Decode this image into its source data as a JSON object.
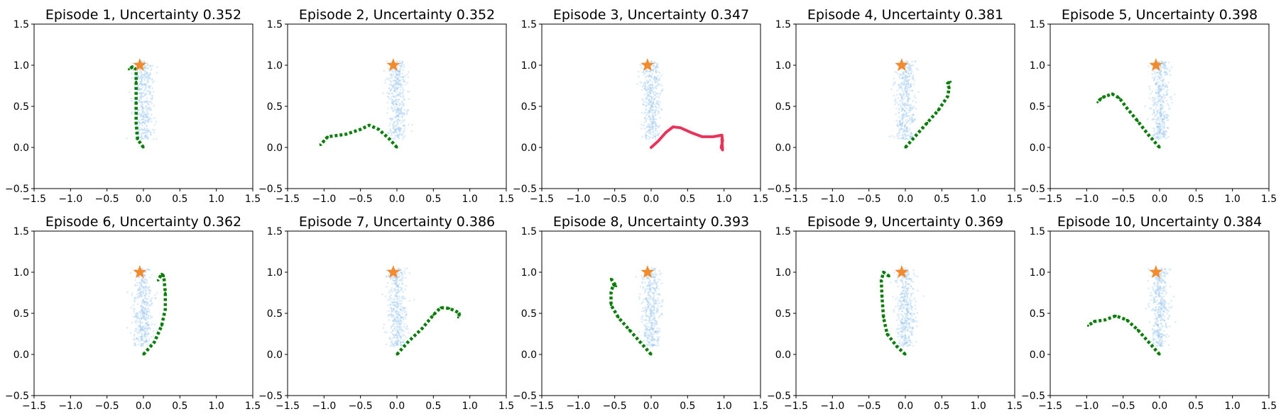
{
  "colors": {
    "cloud": "#9ec8ee",
    "target": "#f28a2e",
    "trajectory": "#0b7d0b",
    "highlight": "#e8335a"
  },
  "chart_data": [
    {
      "type": "scatter",
      "title": "Episode 1, Uncertainty 0.352",
      "xlim": [
        -1.5,
        1.5
      ],
      "ylim": [
        -0.5,
        1.5
      ],
      "xticks": [
        "−1.5",
        "−1.0",
        "−0.5",
        "0.0",
        "0.5",
        "1.0",
        "1.5"
      ],
      "yticks": [
        "−0.5",
        "0.0",
        "0.5",
        "1.0",
        "1.5"
      ],
      "cloud": {
        "center_x": 0.0,
        "top_y": 1.0,
        "bottom_y": 0.15,
        "half_width": 0.12,
        "points": 420
      },
      "target": [
        -0.05,
        1.0
      ],
      "trajectory": {
        "style": "dotted",
        "color": "trajectory",
        "points": [
          [
            0.0,
            0.0
          ],
          [
            -0.08,
            0.1
          ],
          [
            -0.1,
            0.3
          ],
          [
            -0.1,
            0.55
          ],
          [
            -0.1,
            0.8
          ],
          [
            -0.1,
            0.95
          ],
          [
            -0.15,
            0.98
          ],
          [
            -0.2,
            0.95
          ]
        ]
      }
    },
    {
      "type": "scatter",
      "title": "Episode 2, Uncertainty 0.352",
      "xlim": [
        -1.5,
        1.5
      ],
      "ylim": [
        -0.5,
        1.5
      ],
      "xticks": [
        "−1.5",
        "−1.0",
        "−0.5",
        "0.0",
        "0.5",
        "1.0",
        "1.5"
      ],
      "yticks": [
        "−0.5",
        "0.0",
        "0.5",
        "1.0",
        "1.5"
      ],
      "cloud": {
        "center_x": 0.0,
        "top_y": 1.0,
        "bottom_y": 0.15,
        "half_width": 0.12,
        "points": 420
      },
      "target": [
        -0.05,
        1.0
      ],
      "trajectory": {
        "style": "dotted",
        "color": "trajectory",
        "points": [
          [
            0.0,
            0.0
          ],
          [
            -0.1,
            0.1
          ],
          [
            -0.25,
            0.22
          ],
          [
            -0.38,
            0.27
          ],
          [
            -0.5,
            0.22
          ],
          [
            -0.7,
            0.16
          ],
          [
            -0.95,
            0.13
          ],
          [
            -1.0,
            0.08
          ],
          [
            -1.05,
            0.03
          ]
        ]
      }
    },
    {
      "type": "scatter",
      "title": "Episode 3, Uncertainty 0.347",
      "xlim": [
        -1.5,
        1.5
      ],
      "ylim": [
        -0.5,
        1.5
      ],
      "xticks": [
        "−1.5",
        "−1.0",
        "−0.5",
        "0.0",
        "0.5",
        "1.0",
        "1.5"
      ],
      "yticks": [
        "−0.5",
        "0.0",
        "0.5",
        "1.0",
        "1.5"
      ],
      "cloud": {
        "center_x": 0.0,
        "top_y": 1.0,
        "bottom_y": 0.15,
        "half_width": 0.12,
        "points": 420
      },
      "target": [
        -0.05,
        1.0
      ],
      "trajectory": {
        "style": "solid",
        "color": "highlight",
        "points": [
          [
            0.0,
            0.0
          ],
          [
            0.1,
            0.08
          ],
          [
            0.2,
            0.18
          ],
          [
            0.3,
            0.25
          ],
          [
            0.4,
            0.24
          ],
          [
            0.55,
            0.18
          ],
          [
            0.7,
            0.13
          ],
          [
            0.85,
            0.13
          ],
          [
            0.97,
            0.15
          ],
          [
            0.98,
            0.08
          ],
          [
            0.96,
            0.0
          ],
          [
            0.98,
            -0.03
          ],
          [
            0.97,
            0.1
          ]
        ]
      }
    },
    {
      "type": "scatter",
      "title": "Episode 4, Uncertainty 0.381",
      "xlim": [
        -1.5,
        1.5
      ],
      "ylim": [
        -0.5,
        1.5
      ],
      "xticks": [
        "−1.5",
        "−1.0",
        "−0.5",
        "0.0",
        "0.5",
        "1.0",
        "1.5"
      ],
      "yticks": [
        "−0.5",
        "0.0",
        "0.5",
        "1.0",
        "1.5"
      ],
      "cloud": {
        "center_x": 0.0,
        "top_y": 1.0,
        "bottom_y": 0.15,
        "half_width": 0.12,
        "points": 420
      },
      "target": [
        -0.05,
        1.0
      ],
      "trajectory": {
        "style": "dotted",
        "color": "trajectory",
        "points": [
          [
            0.0,
            0.0
          ],
          [
            0.15,
            0.15
          ],
          [
            0.3,
            0.3
          ],
          [
            0.45,
            0.45
          ],
          [
            0.58,
            0.62
          ],
          [
            0.6,
            0.72
          ],
          [
            0.58,
            0.78
          ],
          [
            0.62,
            0.8
          ]
        ]
      }
    },
    {
      "type": "scatter",
      "title": "Episode 5, Uncertainty 0.398",
      "xlim": [
        -1.5,
        1.5
      ],
      "ylim": [
        -0.5,
        1.5
      ],
      "xticks": [
        "−1.5",
        "−1.0",
        "−0.5",
        "0.0",
        "0.5",
        "1.0",
        "1.5"
      ],
      "yticks": [
        "−0.5",
        "0.0",
        "0.5",
        "1.0",
        "1.5"
      ],
      "cloud": {
        "center_x": 0.0,
        "top_y": 1.0,
        "bottom_y": 0.15,
        "half_width": 0.12,
        "points": 420
      },
      "target": [
        -0.05,
        1.0
      ],
      "trajectory": {
        "style": "dotted",
        "color": "trajectory",
        "points": [
          [
            0.0,
            0.0
          ],
          [
            -0.15,
            0.15
          ],
          [
            -0.3,
            0.32
          ],
          [
            -0.45,
            0.48
          ],
          [
            -0.55,
            0.6
          ],
          [
            -0.65,
            0.65
          ],
          [
            -0.75,
            0.62
          ],
          [
            -0.8,
            0.6
          ],
          [
            -0.85,
            0.55
          ]
        ]
      }
    },
    {
      "type": "scatter",
      "title": "Episode 6, Uncertainty 0.362",
      "xlim": [
        -1.5,
        1.5
      ],
      "ylim": [
        -0.5,
        1.5
      ],
      "xticks": [
        "−1.5",
        "−1.0",
        "−0.5",
        "0.0",
        "0.5",
        "1.0",
        "1.5"
      ],
      "yticks": [
        "−0.5",
        "0.0",
        "0.5",
        "1.0",
        "1.5"
      ],
      "cloud": {
        "center_x": 0.0,
        "top_y": 1.0,
        "bottom_y": 0.15,
        "half_width": 0.12,
        "points": 420
      },
      "target": [
        -0.05,
        1.0
      ],
      "trajectory": {
        "style": "dotted",
        "color": "trajectory",
        "points": [
          [
            0.0,
            0.0
          ],
          [
            0.15,
            0.15
          ],
          [
            0.25,
            0.35
          ],
          [
            0.3,
            0.55
          ],
          [
            0.3,
            0.75
          ],
          [
            0.28,
            0.95
          ],
          [
            0.25,
            0.98
          ],
          [
            0.2,
            0.9
          ]
        ]
      }
    },
    {
      "type": "scatter",
      "title": "Episode 7, Uncertainty 0.386",
      "xlim": [
        -1.5,
        1.5
      ],
      "ylim": [
        -0.5,
        1.5
      ],
      "xticks": [
        "−1.5",
        "−1.0",
        "−0.5",
        "0.0",
        "0.5",
        "1.0",
        "1.5"
      ],
      "yticks": [
        "−0.5",
        "0.0",
        "0.5",
        "1.0",
        "1.5"
      ],
      "cloud": {
        "center_x": 0.0,
        "top_y": 1.0,
        "bottom_y": 0.15,
        "half_width": 0.12,
        "points": 420
      },
      "target": [
        -0.05,
        1.0
      ],
      "trajectory": {
        "style": "dotted",
        "color": "trajectory",
        "points": [
          [
            0.0,
            0.0
          ],
          [
            0.15,
            0.15
          ],
          [
            0.35,
            0.32
          ],
          [
            0.5,
            0.48
          ],
          [
            0.6,
            0.57
          ],
          [
            0.72,
            0.56
          ],
          [
            0.82,
            0.52
          ],
          [
            0.86,
            0.5
          ],
          [
            0.84,
            0.45
          ]
        ]
      }
    },
    {
      "type": "scatter",
      "title": "Episode 8, Uncertainty 0.393",
      "xlim": [
        -1.5,
        1.5
      ],
      "ylim": [
        -0.5,
        1.5
      ],
      "xticks": [
        "−1.5",
        "−1.0",
        "−0.5",
        "0.0",
        "0.5",
        "1.0",
        "1.5"
      ],
      "yticks": [
        "−0.5",
        "0.0",
        "0.5",
        "1.0",
        "1.5"
      ],
      "cloud": {
        "center_x": 0.0,
        "top_y": 1.0,
        "bottom_y": 0.15,
        "half_width": 0.12,
        "points": 420
      },
      "target": [
        -0.05,
        1.0
      ],
      "trajectory": {
        "style": "dotted",
        "color": "trajectory",
        "points": [
          [
            0.0,
            0.0
          ],
          [
            -0.15,
            0.15
          ],
          [
            -0.3,
            0.3
          ],
          [
            -0.45,
            0.45
          ],
          [
            -0.55,
            0.6
          ],
          [
            -0.55,
            0.75
          ],
          [
            -0.52,
            0.85
          ],
          [
            -0.48,
            0.83
          ],
          [
            -0.55,
            0.92
          ]
        ]
      }
    },
    {
      "type": "scatter",
      "title": "Episode 9, Uncertainty 0.369",
      "xlim": [
        -1.5,
        1.5
      ],
      "ylim": [
        -0.5,
        1.5
      ],
      "xticks": [
        "−1.5",
        "−1.0",
        "−0.5",
        "0.0",
        "0.5",
        "1.0",
        "1.5"
      ],
      "yticks": [
        "−0.5",
        "0.0",
        "0.5",
        "1.0",
        "1.5"
      ],
      "cloud": {
        "center_x": 0.0,
        "top_y": 1.0,
        "bottom_y": 0.15,
        "half_width": 0.12,
        "points": 420
      },
      "target": [
        -0.05,
        1.0
      ],
      "trajectory": {
        "style": "dotted",
        "color": "trajectory",
        "points": [
          [
            0.0,
            0.0
          ],
          [
            -0.12,
            0.1
          ],
          [
            -0.25,
            0.25
          ],
          [
            -0.3,
            0.45
          ],
          [
            -0.32,
            0.7
          ],
          [
            -0.33,
            0.9
          ],
          [
            -0.3,
            1.0
          ],
          [
            -0.22,
            0.95
          ]
        ]
      }
    },
    {
      "type": "scatter",
      "title": "Episode 10, Uncertainty 0.384",
      "xlim": [
        -1.5,
        1.5
      ],
      "ylim": [
        -0.5,
        1.5
      ],
      "xticks": [
        "−1.5",
        "−1.0",
        "−0.5",
        "0.0",
        "0.5",
        "1.0",
        "1.5"
      ],
      "yticks": [
        "−0.5",
        "0.0",
        "0.5",
        "1.0",
        "1.5"
      ],
      "cloud": {
        "center_x": 0.0,
        "top_y": 1.0,
        "bottom_y": 0.15,
        "half_width": 0.12,
        "points": 420
      },
      "target": [
        -0.05,
        1.0
      ],
      "trajectory": {
        "style": "dotted",
        "color": "trajectory",
        "points": [
          [
            0.0,
            0.0
          ],
          [
            -0.15,
            0.15
          ],
          [
            -0.3,
            0.3
          ],
          [
            -0.45,
            0.42
          ],
          [
            -0.6,
            0.47
          ],
          [
            -0.75,
            0.42
          ],
          [
            -0.9,
            0.4
          ],
          [
            -0.98,
            0.35
          ]
        ]
      }
    }
  ]
}
